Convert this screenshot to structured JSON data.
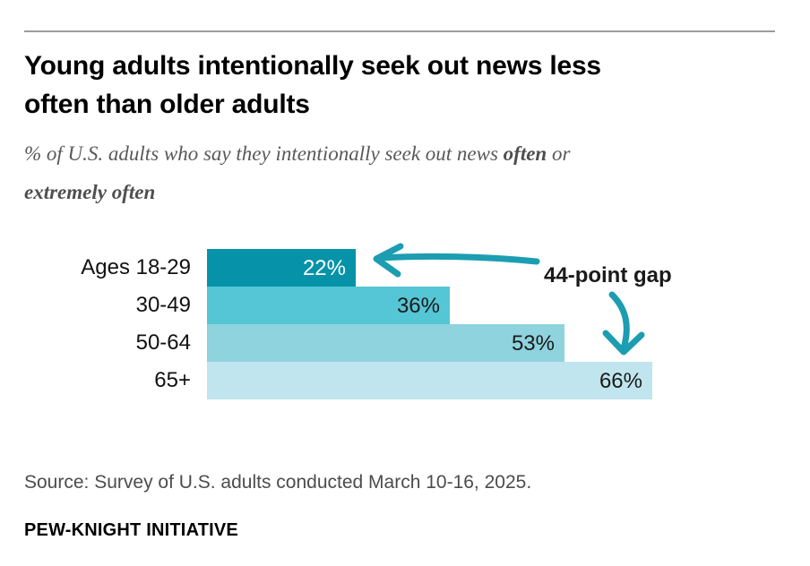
{
  "header": {
    "title_lines": [
      "Young adults intentionally seek out news less",
      "often than older adults"
    ],
    "subtitle": {
      "line1_prefix": "% of U.S. adults who say they intentionally seek out news ",
      "line1_bold": "often",
      "line1_suffix": " or",
      "line2_bold": "extremely often"
    }
  },
  "chart_data": {
    "type": "bar",
    "orientation": "horizontal",
    "title": "Young adults intentionally seek out news less often than older adults",
    "subtitle": "% of U.S. adults who say they intentionally seek out news often or extremely often",
    "categories": [
      "Ages 18-29",
      "30-49",
      "50-64",
      "65+"
    ],
    "values": [
      22,
      36,
      53,
      66
    ],
    "value_labels": [
      "22%",
      "36%",
      "53%",
      "66%"
    ],
    "unit": "%",
    "xlim": [
      0,
      100
    ],
    "grid": false,
    "legend": false,
    "bar_colors": [
      "#0693a9",
      "#55c6d5",
      "#8ed3de",
      "#c0e5ee"
    ],
    "value_label_colors": [
      "#ffffff",
      "#1a1a1a",
      "#1a1a1a",
      "#1a1a1a"
    ],
    "annotation": {
      "label": "44-point gap",
      "arrow_color": "#1c9db2",
      "points_from": "Ages 18-29 (22%)",
      "points_to": "65+ (66%)"
    }
  },
  "footer": {
    "source": "Source: Survey of U.S. adults conducted March 10-16, 2025.",
    "brand": "PEW-KNIGHT INITIATIVE"
  },
  "colors": {
    "background": "#ffffff",
    "rule": "#9c9c9c",
    "title_text": "#000000",
    "subtitle_text": "#595959"
  }
}
